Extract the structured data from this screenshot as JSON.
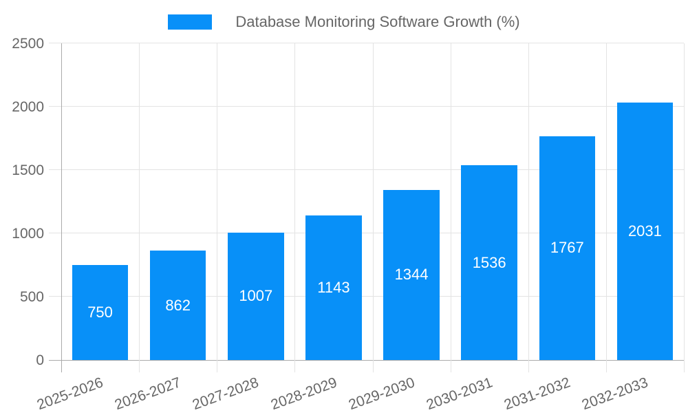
{
  "chart_data": {
    "type": "bar",
    "title": "Database Monitoring Software Growth (%)",
    "legend_position": "top",
    "categories": [
      "2025-2026",
      "2026-2027",
      "2027-2028",
      "2028-2029",
      "2029-2030",
      "2030-2031",
      "2031-2032",
      "2032-2033"
    ],
    "values": [
      750,
      862,
      1007,
      1143,
      1344,
      1536,
      1767,
      2031
    ],
    "xlabel": "",
    "ylabel": "",
    "ylim": [
      0,
      2500
    ],
    "yticks": [
      0,
      500,
      1000,
      1500,
      2000,
      2500
    ],
    "grid": true,
    "x_tick_rotation_deg": -20,
    "colors": {
      "bar": "#0890f8",
      "bar_label": "#ffffff",
      "tick_text": "#666666",
      "gridline": "#e3e3e3",
      "axis_zero_line": "#aaaaaa",
      "background": "#ffffff"
    }
  }
}
